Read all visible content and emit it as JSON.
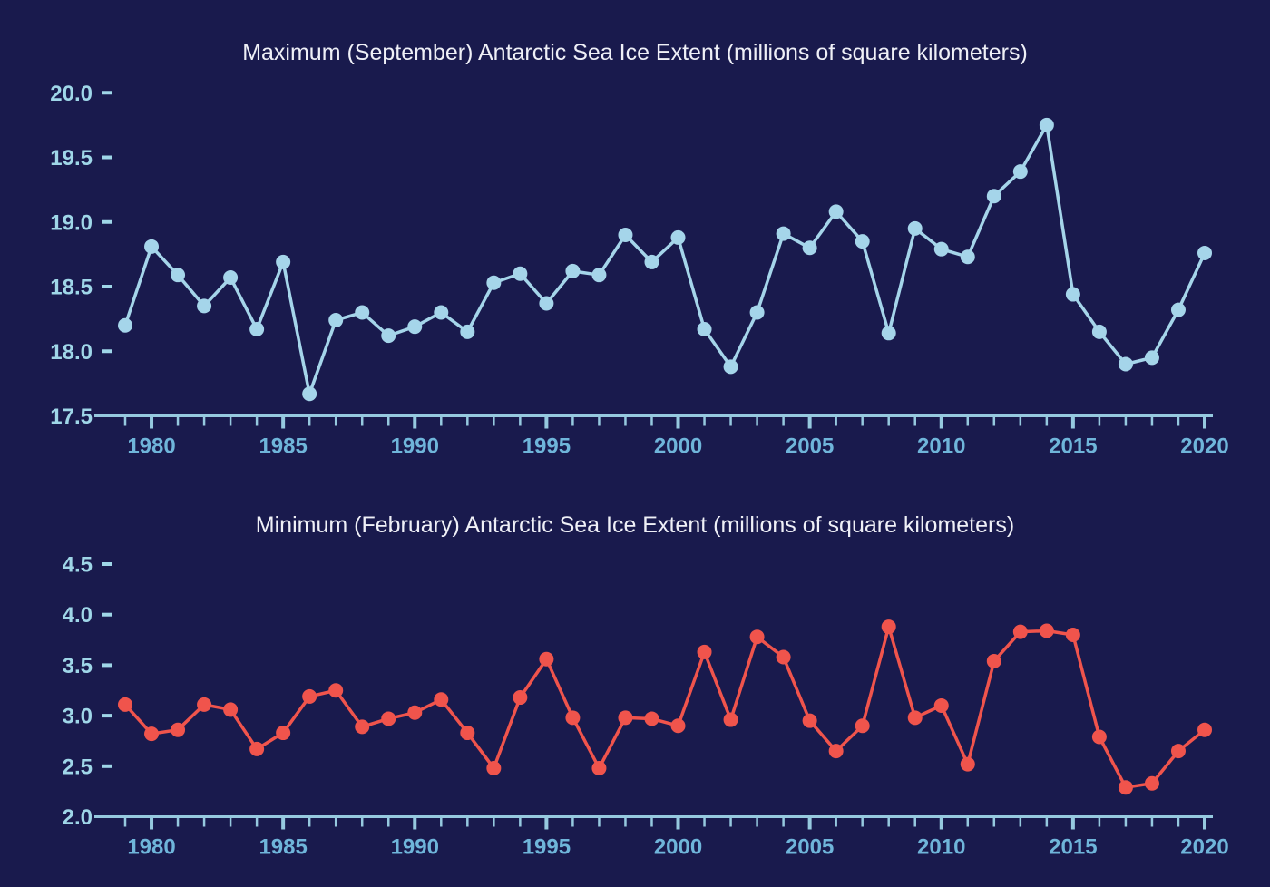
{
  "page": {
    "kind": "dual-line-chart-figure"
  },
  "colors": {
    "background": "#191A4D",
    "title": "#EFF0F7",
    "axis": "#96C9DF",
    "ylabel": "#9FD6E8",
    "ytick_dash": "#9FD6E8",
    "xlabel": "#6FB5DA",
    "max_series": "#A5D5EA",
    "min_series": "#F0544C"
  },
  "chart_data": [
    {
      "type": "line",
      "title": "Maximum (September) Antarctic Sea Ice Extent (millions of square kilometers)",
      "xlabel": "",
      "ylabel": "",
      "x": [
        1979,
        1980,
        1981,
        1982,
        1983,
        1984,
        1985,
        1986,
        1987,
        1988,
        1989,
        1990,
        1991,
        1992,
        1993,
        1994,
        1995,
        1996,
        1997,
        1998,
        1999,
        2000,
        2001,
        2002,
        2003,
        2004,
        2005,
        2006,
        2007,
        2008,
        2009,
        2010,
        2011,
        2012,
        2013,
        2014,
        2015,
        2016,
        2017,
        2018,
        2019,
        2020
      ],
      "series": [
        {
          "name": "Maximum September Antarctic sea ice extent",
          "values": [
            18.2,
            18.81,
            18.59,
            18.35,
            18.57,
            18.17,
            18.69,
            17.67,
            18.24,
            18.3,
            18.12,
            18.19,
            18.3,
            18.15,
            18.53,
            18.6,
            18.37,
            18.62,
            18.59,
            18.9,
            18.69,
            18.88,
            18.17,
            17.88,
            18.3,
            18.91,
            18.8,
            19.08,
            18.85,
            18.14,
            18.95,
            18.79,
            18.73,
            19.2,
            19.39,
            19.75,
            18.44,
            18.15,
            17.9,
            17.95,
            18.32,
            18.76
          ]
        }
      ],
      "ylim": [
        17.5,
        20.0
      ],
      "yticks": [
        17.5,
        18.0,
        18.5,
        19.0,
        19.5,
        20.0
      ],
      "ytick_labels": [
        "17.5",
        "18.0",
        "18.5",
        "19.0",
        "19.5",
        "20.0"
      ],
      "xlim": [
        1979,
        2020
      ],
      "labeled_xticks": [
        1980,
        1985,
        1990,
        1995,
        2000,
        2005,
        2010,
        2015,
        2020
      ],
      "xtick_labels": [
        "1980",
        "1985",
        "1990",
        "1995",
        "2000",
        "2005",
        "2010",
        "2015",
        "2020"
      ],
      "minor_xticks_every": 1,
      "grid": false,
      "legend": "none",
      "line_color": "#A5D5EA",
      "marker": "circle"
    },
    {
      "type": "line",
      "title": "Minimum (February) Antarctic Sea Ice Extent (millions of square kilometers)",
      "xlabel": "",
      "ylabel": "",
      "x": [
        1979,
        1980,
        1981,
        1982,
        1983,
        1984,
        1985,
        1986,
        1987,
        1988,
        1989,
        1990,
        1991,
        1992,
        1993,
        1994,
        1995,
        1996,
        1997,
        1998,
        1999,
        2000,
        2001,
        2002,
        2003,
        2004,
        2005,
        2006,
        2007,
        2008,
        2009,
        2010,
        2011,
        2012,
        2013,
        2014,
        2015,
        2016,
        2017,
        2018,
        2019,
        2020
      ],
      "series": [
        {
          "name": "Minimum February Antarctic sea ice extent",
          "values": [
            3.11,
            2.82,
            2.86,
            3.11,
            3.06,
            2.67,
            2.83,
            3.19,
            3.25,
            2.89,
            2.97,
            3.03,
            3.16,
            2.83,
            2.48,
            3.18,
            3.56,
            2.98,
            2.48,
            2.98,
            2.97,
            2.9,
            3.63,
            2.96,
            3.78,
            3.58,
            2.95,
            2.65,
            2.9,
            3.88,
            2.98,
            3.1,
            2.52,
            3.54,
            3.83,
            3.84,
            3.8,
            2.79,
            2.29,
            2.33,
            2.65,
            2.86
          ]
        }
      ],
      "ylim": [
        2.0,
        4.5
      ],
      "yticks": [
        2.0,
        2.5,
        3.0,
        3.5,
        4.0,
        4.5
      ],
      "ytick_labels": [
        "2.0",
        "2.5",
        "3.0",
        "3.5",
        "4.0",
        "4.5"
      ],
      "xlim": [
        1979,
        2020
      ],
      "labeled_xticks": [
        1980,
        1985,
        1990,
        1995,
        2000,
        2005,
        2010,
        2015,
        2020
      ],
      "xtick_labels": [
        "1980",
        "1985",
        "1990",
        "1995",
        "2000",
        "2005",
        "2010",
        "2015",
        "2020"
      ],
      "minor_xticks_every": 1,
      "grid": false,
      "legend": "none",
      "line_color": "#F0544C",
      "marker": "circle"
    }
  ]
}
